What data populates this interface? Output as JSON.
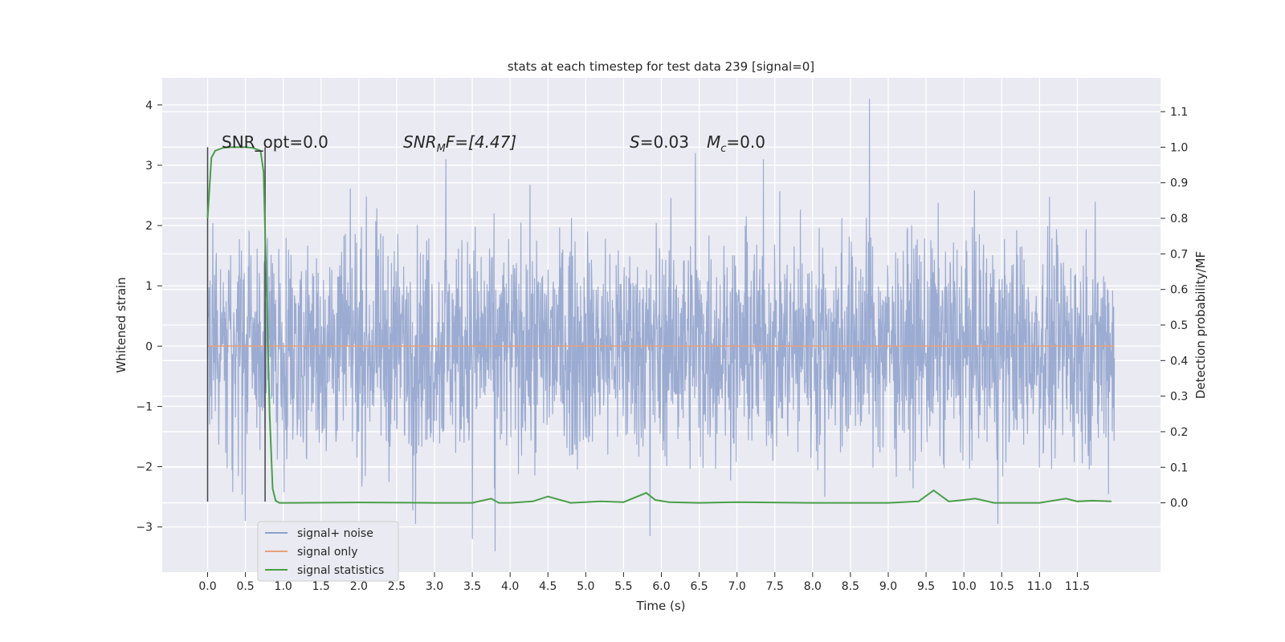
{
  "chart_data": {
    "type": "line",
    "title": "stats at each timestep for test data 239 [signal=0]",
    "xlabel": "Time (s)",
    "ylabel": "Whitened strain",
    "y2label": "Detection probability/MF",
    "xlim": [
      -0.6,
      12.6
    ],
    "ylim": [
      -3.75,
      4.45
    ],
    "y2lim": [
      -0.195,
      1.195
    ],
    "xticks": [
      0.0,
      0.5,
      1.0,
      1.5,
      2.0,
      2.5,
      3.0,
      3.5,
      4.0,
      4.5,
      5.0,
      5.5,
      6.0,
      6.5,
      7.0,
      7.5,
      8.0,
      8.5,
      9.0,
      9.5,
      10.0,
      10.5,
      11.0,
      11.5
    ],
    "xtick_labels": [
      "0.0",
      "0.5",
      "1.0",
      "1.5",
      "2.0",
      "2.5",
      "3.0",
      "3.5",
      "4.0",
      "4.5",
      "5.0",
      "5.5",
      "6.0",
      "6.5",
      "7.0",
      "7.5",
      "8.0",
      "8.5",
      "9.0",
      "9.5",
      "10.0",
      "10.5",
      "11.0",
      "11.5"
    ],
    "yticks": [
      -3,
      -2,
      -1,
      0,
      1,
      2,
      3,
      4
    ],
    "ytick_labels": [
      "−3",
      "−2",
      "−1",
      "0",
      "1",
      "2",
      "3",
      "4"
    ],
    "y2ticks": [
      0.0,
      0.1,
      0.2,
      0.3,
      0.4,
      0.5,
      0.6,
      0.7,
      0.8,
      0.9,
      1.0,
      1.1
    ],
    "y2tick_labels": [
      "0.0",
      "0.1",
      "0.2",
      "0.3",
      "0.4",
      "0.5",
      "0.6",
      "0.7",
      "0.8",
      "0.9",
      "1.0",
      "1.1"
    ],
    "grid": true,
    "legend_position": "lower-left",
    "annotations": {
      "snr_opt": "SNR_opt=0.0",
      "snr_mf_main": "SNR",
      "snr_mf_sub": "M",
      "snr_mf_rest": "F=[4.47]",
      "s_var": "S",
      "s_value": "=0.03",
      "mc_var": "M",
      "mc_sub": "c",
      "mc_value": "=0.0"
    },
    "markers": {
      "vlines_x": [
        0.0,
        0.76
      ],
      "vline_color": "#444444"
    },
    "series": [
      {
        "name": "signal+ noise",
        "color": "#8da0cb",
        "kind": "noise",
        "x_range": [
          0.0,
          11.99
        ],
        "approx_range": [
          -3.4,
          4.1
        ],
        "peaks": [
          {
            "x": 8.75,
            "y": 4.1
          },
          {
            "x": 3.15,
            "y": 3.1
          },
          {
            "x": 6.45,
            "y": 3.2
          },
          {
            "x": 7.35,
            "y": 3.1
          },
          {
            "x": 5.85,
            "y": -3.15
          },
          {
            "x": 3.8,
            "y": -3.4
          },
          {
            "x": 3.5,
            "y": -3.2
          },
          {
            "x": 0.5,
            "y": -2.9
          },
          {
            "x": 2.75,
            "y": -2.95
          },
          {
            "x": 10.45,
            "y": -2.95
          }
        ]
      },
      {
        "name": "signal only",
        "color": "#e8a17c",
        "kind": "line",
        "x": [
          0.0,
          11.99
        ],
        "y": [
          0.0,
          0.0
        ]
      },
      {
        "name": "signal statistics",
        "color": "#4a9e4a",
        "kind": "line",
        "axis": "right",
        "x": [
          0.0,
          0.05,
          0.1,
          0.2,
          0.3,
          0.4,
          0.5,
          0.6,
          0.7,
          0.74,
          0.78,
          0.82,
          0.86,
          0.9,
          0.95,
          1.1,
          2.0,
          3.0,
          3.5,
          3.75,
          3.85,
          4.0,
          4.3,
          4.5,
          4.8,
          5.2,
          5.5,
          5.8,
          5.92,
          6.1,
          6.5,
          7.0,
          8.0,
          9.0,
          9.4,
          9.6,
          9.8,
          10.0,
          10.15,
          10.4,
          11.0,
          11.35,
          11.5,
          11.7,
          11.95
        ],
        "y": [
          0.8,
          0.97,
          0.99,
          0.998,
          1.0,
          1.0,
          1.0,
          0.998,
          0.99,
          0.93,
          0.6,
          0.25,
          0.04,
          0.006,
          0.0,
          0.0,
          0.001,
          0.0,
          0.0,
          0.012,
          0.0,
          0.0,
          0.004,
          0.018,
          0.0,
          0.004,
          0.002,
          0.028,
          0.008,
          0.002,
          0.0,
          0.002,
          0.0,
          0.0,
          0.004,
          0.035,
          0.004,
          0.008,
          0.012,
          0.0,
          0.0,
          0.012,
          0.004,
          0.006,
          0.004
        ]
      }
    ]
  }
}
